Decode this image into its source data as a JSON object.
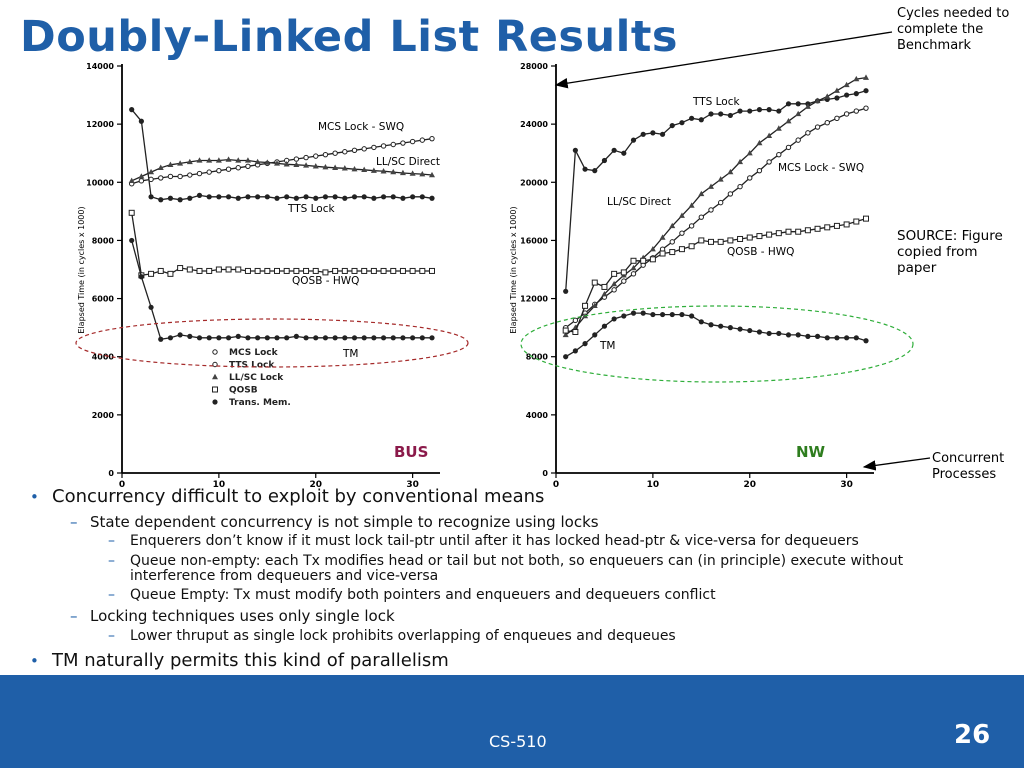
{
  "slide": {
    "title": "Doubly-Linked List Results",
    "annotations": {
      "cycles_note": "Cycles needed to complete the Benchmark",
      "source_note": "SOURCE: Figure copied from paper",
      "processes_note": "Concurrent Processes"
    },
    "bullets": [
      {
        "level": 1,
        "text": "Concurrency difficult to exploit by conventional means"
      },
      {
        "level": 2,
        "text": "State dependent concurrency is not simple to recognize using locks"
      },
      {
        "level": 3,
        "text": "Enquerers don’t know if it must lock tail-ptr until after it has locked head-ptr & vice-versa for dequeuers"
      },
      {
        "level": 3,
        "text": "Queue non-empty: each Tx modifies head or tail but not both, so enqueuers can (in principle) execute without interference from dequeuers and vice-versa"
      },
      {
        "level": 3,
        "text": "Queue Empty: Tx must modify both pointers and enqueuers and dequeuers conflict"
      },
      {
        "level": 2,
        "text": "Locking techniques uses only single lock"
      },
      {
        "level": 3,
        "text": "Lower thruput as single lock prohibits overlapping of enqueues and dequeues"
      },
      {
        "level": 1,
        "text": "TM  naturally permits this kind of parallelism"
      }
    ],
    "footer": {
      "course": "CS-510",
      "page": "26"
    },
    "colors": {
      "title": "#1f5fa8",
      "footer_bg": "#1f5fa8",
      "bus_label": "#8b1a4a",
      "nw_label": "#2e7d1e",
      "bus_ellipse": "#a52a2a",
      "nw_ellipse": "#2fae3a"
    }
  },
  "chart_data": [
    {
      "type": "line",
      "panel_label": "BUS",
      "ylabel": "Elapsed Time (in cycles x 1000)",
      "ylim": [
        0,
        14000
      ],
      "xlim": [
        0,
        32
      ],
      "yticks": [
        0,
        2000,
        4000,
        6000,
        8000,
        10000,
        12000,
        14000
      ],
      "xticks": [
        0,
        10,
        20,
        30
      ],
      "legend": [
        "MCS Lock",
        "TTS Lock",
        "LL/SC Lock",
        "QOSB",
        "Trans. Mem."
      ],
      "legend_position": "bottom-left",
      "series": [
        {
          "name": "MCS Lock",
          "label": "MCS Lock - SWQ",
          "marker": "dot-open",
          "x": [
            1,
            2,
            3,
            4,
            5,
            6,
            7,
            8,
            9,
            10,
            11,
            12,
            13,
            14,
            15,
            16,
            17,
            18,
            19,
            20,
            21,
            22,
            23,
            24,
            25,
            26,
            27,
            28,
            29,
            30,
            31,
            32
          ],
          "values": [
            9950,
            10050,
            10100,
            10150,
            10200,
            10200,
            10250,
            10300,
            10350,
            10400,
            10450,
            10500,
            10550,
            10600,
            10650,
            10700,
            10750,
            10800,
            10850,
            10900,
            10950,
            11000,
            11050,
            11100,
            11150,
            11200,
            11250,
            11300,
            11350,
            11400,
            11450,
            11500
          ]
        },
        {
          "name": "TTS Lock",
          "label": "TTS Lock",
          "marker": "dot",
          "x": [
            1,
            2,
            3,
            4,
            5,
            6,
            7,
            8,
            9,
            10,
            11,
            12,
            13,
            14,
            15,
            16,
            17,
            18,
            19,
            20,
            21,
            22,
            23,
            24,
            25,
            26,
            27,
            28,
            29,
            30,
            31,
            32
          ],
          "values": [
            12500,
            12100,
            9500,
            9400,
            9450,
            9400,
            9450,
            9550,
            9500,
            9500,
            9500,
            9450,
            9500,
            9500,
            9500,
            9450,
            9500,
            9450,
            9500,
            9450,
            9500,
            9500,
            9450,
            9500,
            9500,
            9450,
            9500,
            9500,
            9450,
            9500,
            9500,
            9450
          ]
        },
        {
          "name": "LL/SC Lock",
          "label": "LL/SC Direct",
          "marker": "triangle",
          "x": [
            1,
            2,
            3,
            4,
            5,
            6,
            7,
            8,
            9,
            10,
            11,
            12,
            13,
            14,
            15,
            16,
            17,
            18,
            19,
            20,
            21,
            22,
            23,
            24,
            25,
            26,
            27,
            28,
            29,
            30,
            31,
            32
          ],
          "values": [
            10050,
            10200,
            10350,
            10500,
            10600,
            10650,
            10700,
            10750,
            10750,
            10750,
            10780,
            10750,
            10750,
            10700,
            10680,
            10650,
            10620,
            10600,
            10580,
            10550,
            10520,
            10500,
            10480,
            10450,
            10430,
            10400,
            10380,
            10350,
            10320,
            10300,
            10280,
            10250
          ]
        },
        {
          "name": "QOSB",
          "label": "QOSB - HWQ",
          "marker": "square",
          "x": [
            1,
            2,
            3,
            4,
            5,
            6,
            7,
            8,
            9,
            10,
            11,
            12,
            13,
            14,
            15,
            16,
            17,
            18,
            19,
            20,
            21,
            22,
            23,
            24,
            25,
            26,
            27,
            28,
            29,
            30,
            31,
            32
          ],
          "values": [
            8950,
            6800,
            6850,
            6950,
            6850,
            7050,
            7000,
            6950,
            6950,
            7000,
            7000,
            7000,
            6950,
            6950,
            6950,
            6950,
            6950,
            6950,
            6950,
            6950,
            6900,
            6950,
            6950,
            6950,
            6950,
            6950,
            6950,
            6950,
            6950,
            6950,
            6950,
            6950
          ]
        },
        {
          "name": "Trans. Mem.",
          "label": "TM",
          "marker": "dot",
          "x": [
            1,
            2,
            3,
            4,
            5,
            6,
            7,
            8,
            9,
            10,
            11,
            12,
            13,
            14,
            15,
            16,
            17,
            18,
            19,
            20,
            21,
            22,
            23,
            24,
            25,
            26,
            27,
            28,
            29,
            30,
            31,
            32
          ],
          "values": [
            8000,
            6750,
            5700,
            4600,
            4650,
            4750,
            4700,
            4650,
            4650,
            4650,
            4650,
            4700,
            4650,
            4650,
            4650,
            4650,
            4650,
            4700,
            4650,
            4650,
            4650,
            4650,
            4650,
            4650,
            4650,
            4650,
            4650,
            4650,
            4650,
            4650,
            4650,
            4650
          ]
        }
      ]
    },
    {
      "type": "line",
      "panel_label": "NW",
      "ylabel": "Elapsed Time (in cycles x 1000)",
      "ylim": [
        0,
        28000
      ],
      "xlim": [
        0,
        32
      ],
      "yticks": [
        0,
        4000,
        8000,
        12000,
        16000,
        20000,
        24000,
        28000
      ],
      "xticks": [
        0,
        10,
        20,
        30
      ],
      "series": [
        {
          "name": "TTS Lock",
          "label": "TTS Lock",
          "marker": "dot",
          "x": [
            1,
            2,
            3,
            4,
            5,
            6,
            7,
            8,
            9,
            10,
            11,
            12,
            13,
            14,
            15,
            16,
            17,
            18,
            19,
            20,
            21,
            22,
            23,
            24,
            25,
            26,
            27,
            28,
            29,
            30,
            31,
            32
          ],
          "values": [
            12500,
            22200,
            20900,
            20800,
            21500,
            22200,
            22000,
            22900,
            23300,
            23400,
            23300,
            23900,
            24100,
            24400,
            24300,
            24700,
            24700,
            24600,
            24900,
            24900,
            25000,
            25000,
            24900,
            25400,
            25400,
            25400,
            25600,
            25700,
            25800,
            26000,
            26100,
            26300
          ]
        },
        {
          "name": "MCS Lock",
          "label": "MCS Lock - SWQ",
          "marker": "dot-open",
          "x": [
            1,
            2,
            3,
            4,
            5,
            6,
            7,
            8,
            9,
            10,
            11,
            12,
            13,
            14,
            15,
            16,
            17,
            18,
            19,
            20,
            21,
            22,
            23,
            24,
            25,
            26,
            27,
            28,
            29,
            30,
            31,
            32
          ],
          "values": [
            10000,
            10500,
            11000,
            11600,
            12100,
            12600,
            13200,
            13700,
            14300,
            14800,
            15400,
            15900,
            16500,
            17000,
            17600,
            18100,
            18600,
            19200,
            19700,
            20300,
            20800,
            21400,
            21900,
            22400,
            22900,
            23400,
            23800,
            24100,
            24400,
            24700,
            24900,
            25100
          ]
        },
        {
          "name": "LL/SC Lock",
          "label": "LL/SC Direct",
          "marker": "triangle",
          "x": [
            1,
            2,
            3,
            4,
            5,
            6,
            7,
            8,
            9,
            10,
            11,
            12,
            13,
            14,
            15,
            16,
            17,
            18,
            19,
            20,
            21,
            22,
            23,
            24,
            25,
            26,
            27,
            28,
            29,
            30,
            31,
            32
          ],
          "values": [
            9500,
            10000,
            10800,
            11500,
            12300,
            13000,
            13600,
            14100,
            14800,
            15400,
            16200,
            17000,
            17700,
            18400,
            19200,
            19700,
            20200,
            20700,
            21400,
            22000,
            22700,
            23200,
            23700,
            24200,
            24700,
            25200,
            25600,
            25900,
            26300,
            26700,
            27100,
            27200
          ]
        },
        {
          "name": "QOSB",
          "label": "QOSB - HWQ",
          "marker": "square",
          "x": [
            1,
            2,
            3,
            4,
            5,
            6,
            7,
            8,
            9,
            10,
            11,
            12,
            13,
            14,
            15,
            16,
            17,
            18,
            19,
            20,
            21,
            22,
            23,
            24,
            25,
            26,
            27,
            28,
            29,
            30,
            31,
            32
          ],
          "values": [
            9800,
            9700,
            11500,
            13100,
            12800,
            13700,
            13800,
            14600,
            14600,
            14700,
            15100,
            15200,
            15400,
            15600,
            16000,
            15900,
            15900,
            16000,
            16100,
            16200,
            16300,
            16400,
            16500,
            16600,
            16600,
            16700,
            16800,
            16900,
            17000,
            17100,
            17300,
            17500
          ]
        },
        {
          "name": "Trans. Mem.",
          "label": "TM",
          "marker": "dot",
          "x": [
            1,
            2,
            3,
            4,
            5,
            6,
            7,
            8,
            9,
            10,
            11,
            12,
            13,
            14,
            15,
            16,
            17,
            18,
            19,
            20,
            21,
            22,
            23,
            24,
            25,
            26,
            27,
            28,
            29,
            30,
            31,
            32
          ],
          "values": [
            8000,
            8400,
            8900,
            9500,
            10100,
            10600,
            10800,
            11000,
            11000,
            10900,
            10900,
            10900,
            10900,
            10800,
            10400,
            10200,
            10100,
            10000,
            9900,
            9800,
            9700,
            9600,
            9600,
            9500,
            9500,
            9400,
            9400,
            9300,
            9300,
            9300,
            9300,
            9100
          ]
        }
      ]
    }
  ]
}
